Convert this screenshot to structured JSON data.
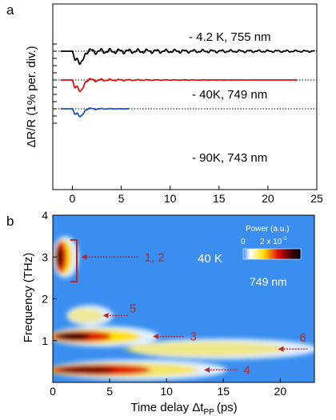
{
  "chart_data": [
    {
      "panel_label": "a",
      "type": "line",
      "ylabel": "ΔR/R (1% per. div.)",
      "xlabel": "",
      "xlim": [
        -2,
        25
      ],
      "xticks": [
        0,
        5,
        10,
        15,
        20,
        25
      ],
      "grid": false,
      "series": [
        {
          "name": "4.2 K, 755 nm",
          "label_text": "- 4.2 K, 755 nm",
          "color": "#000000",
          "baseline_offset_pct": 2.0,
          "x_end": 24.8,
          "period_ps": 0.95,
          "dip_depth_pct": 0.9,
          "osc_amp_pct": 0.15,
          "decay_ps": 20
        },
        {
          "name": "40K, 749 nm",
          "label_text": "- 40K, 749 nm",
          "color": "#e01010",
          "baseline_offset_pct": 0.0,
          "x_end": 23.0,
          "period_ps": 0.95,
          "dip_depth_pct": 0.8,
          "osc_amp_pct": 0.12,
          "decay_ps": 4
        },
        {
          "name": "90K, 743 nm",
          "label_text": "- 90K, 743 nm",
          "color": "#1a4fd6",
          "baseline_offset_pct": -2.0,
          "x_end": 5.8,
          "period_ps": 0.95,
          "dip_depth_pct": 0.55,
          "osc_amp_pct": 0.1,
          "decay_ps": 2
        }
      ]
    },
    {
      "panel_label": "b",
      "type": "heatmap",
      "title": "",
      "xlabel_main": "Time delay Δt",
      "xlabel_sub": "PP",
      "xlabel_unit": "(ps)",
      "ylabel": "Frequency (THz)",
      "xlim": [
        0,
        23
      ],
      "ylim": [
        0,
        4
      ],
      "xticks": [
        0,
        5,
        10,
        15,
        20
      ],
      "yticks": [
        1,
        2,
        3,
        4
      ],
      "temperature_label": "40 K",
      "wavelength_label": "749 nm",
      "colorbar": {
        "title": "Power (a.u.)",
        "min_label": "0",
        "max_label": "2 x 10",
        "max_exp": "-3"
      },
      "components": [
        {
          "freq_thz": 3.0,
          "label": "1, 2",
          "t_start": 0.2,
          "t_end": 2.0,
          "strength": 0.9
        },
        {
          "freq_thz": 1.1,
          "label": "3",
          "t_start": 0.0,
          "t_end": 9.0,
          "strength": 1.0
        },
        {
          "freq_thz": 0.3,
          "label": "4",
          "t_start": 0.0,
          "t_end": 15.0,
          "strength": 0.6
        },
        {
          "freq_thz": 1.6,
          "label": "5",
          "t_start": 1.5,
          "t_end": 5.0,
          "strength": 0.4
        },
        {
          "freq_thz": 0.8,
          "label": "6",
          "t_start": 7.0,
          "t_end": 23.0,
          "strength": 0.45
        }
      ],
      "arrow_color": "#b02a30"
    }
  ]
}
